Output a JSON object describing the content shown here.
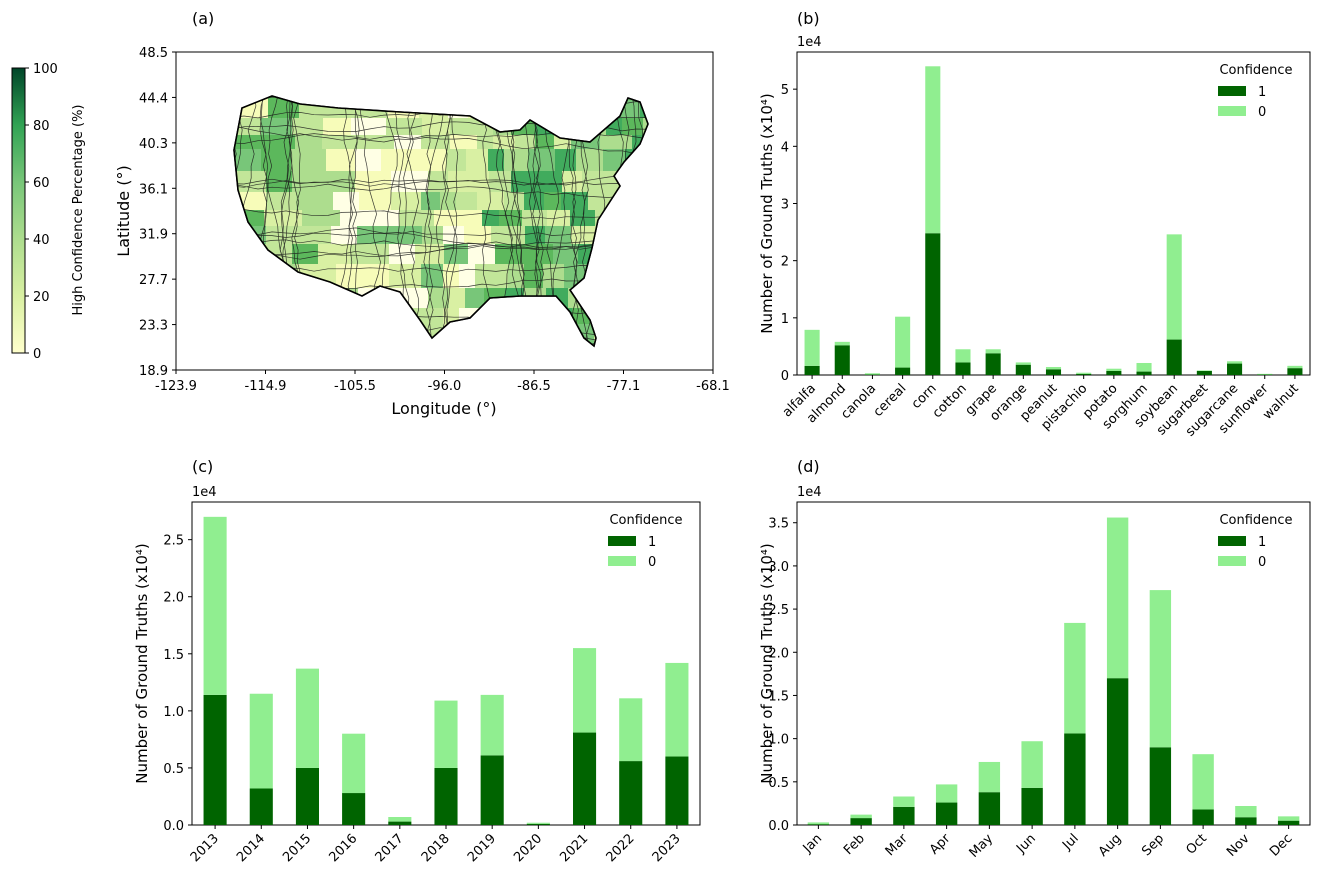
{
  "colors": {
    "dark_green": "#006400",
    "light_green": "#90ee90"
  },
  "panel_a": {
    "label": "(a)",
    "xlabel": "Longitude (°)",
    "ylabel": "Latitude (°)",
    "xticks": [
      "-123.9",
      "-114.9",
      "-105.5",
      "-96.0",
      "-86.5",
      "-77.1",
      "-68.1"
    ],
    "yticks": [
      "18.9",
      "23.3",
      "27.7",
      "31.9",
      "36.1",
      "40.3",
      "44.4",
      "48.5"
    ],
    "colorbar": {
      "label": "High Confidence Percentage (%)",
      "ticks": [
        "0",
        "20",
        "40",
        "60",
        "80",
        "100"
      ],
      "range": [
        0,
        100
      ]
    }
  },
  "chart_data": [
    {
      "id": "b",
      "label": "(b)",
      "type": "bar",
      "stacked": true,
      "ylabel": "Number of Ground Truths (x10⁴)",
      "scale_note": "1e4",
      "ylim": [
        0,
        5.65
      ],
      "yticks": [
        0,
        1,
        2,
        3,
        4,
        5
      ],
      "legend_title": "Confidence",
      "categories": [
        "alfalfa",
        "almond",
        "canola",
        "cereal",
        "corn",
        "cotton",
        "grape",
        "orange",
        "peanut",
        "pistachio",
        "potato",
        "sorghum",
        "soybean",
        "sugarbeet",
        "sugarcane",
        "sunflower",
        "walnut"
      ],
      "series": [
        {
          "name": "1",
          "values": [
            0.16,
            0.52,
            0.01,
            0.13,
            2.48,
            0.22,
            0.38,
            0.18,
            0.1,
            0.02,
            0.07,
            0.06,
            0.62,
            0.07,
            0.2,
            0.01,
            0.12
          ]
        },
        {
          "name": "0",
          "values": [
            0.63,
            0.06,
            0.02,
            0.89,
            2.92,
            0.23,
            0.07,
            0.04,
            0.04,
            0.02,
            0.04,
            0.15,
            1.84,
            0.01,
            0.04,
            0.01,
            0.04
          ]
        }
      ]
    },
    {
      "id": "c",
      "label": "(c)",
      "type": "bar",
      "stacked": true,
      "ylabel": "Number of Ground Truths (x10⁴)",
      "scale_note": "1e4",
      "ylim": [
        0,
        2.83
      ],
      "yticks": [
        0.0,
        0.5,
        1.0,
        1.5,
        2.0,
        2.5
      ],
      "legend_title": "Confidence",
      "categories": [
        "2013",
        "2014",
        "2015",
        "2016",
        "2017",
        "2018",
        "2019",
        "2020",
        "2021",
        "2022",
        "2023"
      ],
      "series": [
        {
          "name": "1",
          "values": [
            1.14,
            0.32,
            0.5,
            0.28,
            0.03,
            0.5,
            0.61,
            0.01,
            0.81,
            0.56,
            0.6
          ]
        },
        {
          "name": "0",
          "values": [
            1.56,
            0.83,
            0.87,
            0.52,
            0.04,
            0.59,
            0.53,
            0.01,
            0.74,
            0.55,
            0.82
          ]
        }
      ]
    },
    {
      "id": "d",
      "label": "(d)",
      "type": "bar",
      "stacked": true,
      "ylabel": "Number of Ground Truths (x10⁴)",
      "scale_note": "1e4",
      "ylim": [
        0,
        3.74
      ],
      "yticks": [
        0.0,
        0.5,
        1.0,
        1.5,
        2.0,
        2.5,
        3.0,
        3.5
      ],
      "legend_title": "Confidence",
      "categories": [
        "Jan",
        "Feb",
        "Mar",
        "Apr",
        "May",
        "Jun",
        "Jul",
        "Aug",
        "Sep",
        "Oct",
        "Nov",
        "Dec"
      ],
      "series": [
        {
          "name": "1",
          "values": [
            0.01,
            0.08,
            0.21,
            0.26,
            0.38,
            0.43,
            1.06,
            1.7,
            0.9,
            0.18,
            0.09,
            0.05
          ]
        },
        {
          "name": "0",
          "values": [
            0.02,
            0.04,
            0.12,
            0.21,
            0.35,
            0.54,
            1.28,
            1.86,
            1.82,
            0.64,
            0.13,
            0.05
          ]
        }
      ]
    }
  ]
}
